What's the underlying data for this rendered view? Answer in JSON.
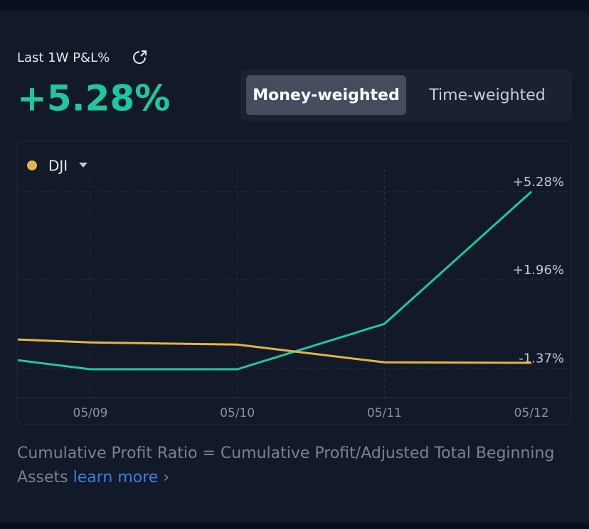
{
  "header": {
    "label": "Last 1W P&L%",
    "value": "+5.28%"
  },
  "toggle": {
    "options": [
      "Money-weighted",
      "Time-weighted"
    ],
    "selected": 0
  },
  "chart_data": {
    "type": "line",
    "categories": [
      null,
      "05/09",
      "05/10",
      "05/11",
      "05/12"
    ],
    "series": [
      {
        "color": "#1fc7a0",
        "values": [
          -1.07,
          -1.41,
          -1.41,
          0.3,
          5.28
        ]
      },
      {
        "name": "DJI",
        "color": "#e6b443",
        "values": [
          -0.29,
          -0.4,
          -0.48,
          -1.15,
          -1.17
        ]
      }
    ],
    "ylim": [
      -2.48,
      6.08
    ],
    "yticks": [
      {
        "value": 5.28,
        "label": "+5.28%"
      },
      {
        "value": 1.96,
        "label": "+1.96%"
      },
      {
        "value": -1.37,
        "label": "-1.37%"
      }
    ],
    "grid": true
  },
  "footer": {
    "text": "Cumulative Profit Ratio = Cumulative Profit/Adjusted Total Beginning Assets",
    "link": "learn more"
  }
}
